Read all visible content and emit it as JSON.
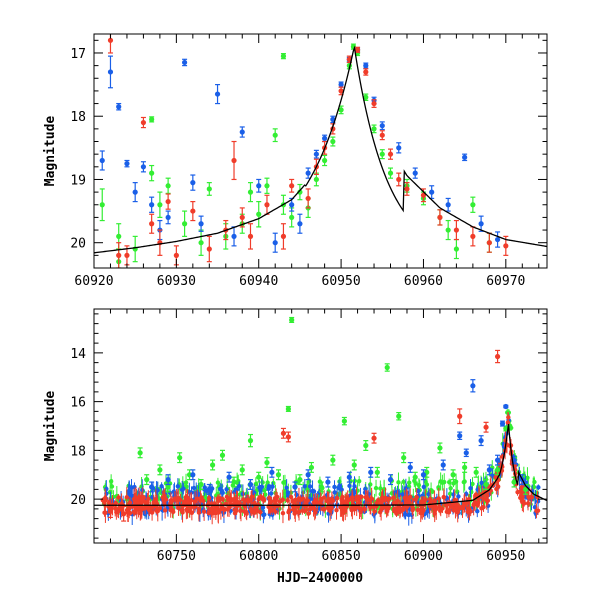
{
  "chart_data": [
    {
      "type": "scatter",
      "panel": "top",
      "ylabel": "Magnitude",
      "xlabel": "",
      "xlim": [
        60920,
        60975
      ],
      "ylim": [
        20.4,
        16.7
      ],
      "y_inverted": true,
      "x_ticks": [
        60920,
        60930,
        60940,
        60950,
        60960,
        60970
      ],
      "x_tick_labels": [
        "60920",
        "60930",
        "60940",
        "60950",
        "60960",
        "60970"
      ],
      "y_ticks": [
        17,
        18,
        19,
        20
      ],
      "y_tick_labels": [
        "17",
        "18",
        "19",
        "20"
      ],
      "model_curve": {
        "name": "model",
        "color": "#000000",
        "peak_x": 60951.6,
        "peak_mag": 16.9,
        "baseline_mag": 20.25,
        "rise_scale": 5.5,
        "fall_scale": 4.0,
        "x": [
          60920,
          60925,
          60930,
          60935,
          60940,
          60944,
          60947,
          60949,
          60950.5,
          60951.6,
          60953,
          60955,
          60958,
          60962,
          60966,
          60970,
          60975
        ],
        "y": [
          20.16,
          20.08,
          19.98,
          19.85,
          19.62,
          19.32,
          18.88,
          18.35,
          17.62,
          16.9,
          17.6,
          18.3,
          18.94,
          19.45,
          19.75,
          19.95,
          20.06
        ]
      },
      "series": [
        {
          "name": "green",
          "color": "#33ee33",
          "x": [
            60921,
            60923,
            60925,
            60927,
            60928,
            60929,
            60931,
            60933,
            60934,
            60936,
            60938,
            60940,
            60941,
            60942,
            60943,
            60944,
            60945,
            60946,
            60947,
            60948,
            60949,
            60950,
            60951,
            60951.5,
            60952,
            60953,
            60954,
            60955,
            60956,
            60958,
            60960,
            60962,
            60963,
            60964,
            60966,
            60968,
            60923,
            60927,
            60939,
            60943
          ],
          "y": [
            19.4,
            19.9,
            20.1,
            18.05,
            19.4,
            19.1,
            19.7,
            20.0,
            19.15,
            19.9,
            19.7,
            19.55,
            19.1,
            18.3,
            19.4,
            19.6,
            19.2,
            19.45,
            19.0,
            18.7,
            18.4,
            17.9,
            17.2,
            16.9,
            17.0,
            17.7,
            18.2,
            18.6,
            18.9,
            19.1,
            19.3,
            19.6,
            19.8,
            20.1,
            19.4,
            20.0,
            20.3,
            18.9,
            19.2,
            17.05
          ],
          "err": [
            0.25,
            0.2,
            0.2,
            0.04,
            0.2,
            0.12,
            0.2,
            0.2,
            0.1,
            0.2,
            0.15,
            0.2,
            0.12,
            0.1,
            0.15,
            0.15,
            0.12,
            0.15,
            0.1,
            0.08,
            0.07,
            0.06,
            0.05,
            0.04,
            0.04,
            0.05,
            0.06,
            0.07,
            0.08,
            0.1,
            0.1,
            0.12,
            0.15,
            0.15,
            0.12,
            0.15,
            0.2,
            0.12,
            0.15,
            0.04
          ]
        },
        {
          "name": "blue",
          "color": "#1a5fe8",
          "x": [
            60921,
            60922,
            60923,
            60924,
            60925,
            60926,
            60927,
            60928,
            60929,
            60931,
            60932,
            60933,
            60935,
            60937,
            60938,
            60940,
            60942,
            60944,
            60945,
            60946,
            60947,
            60948,
            60949,
            60950,
            60951,
            60952,
            60953,
            60954,
            60955,
            60957,
            60959,
            60961,
            60963,
            60965,
            60967,
            60969
          ],
          "y": [
            18.7,
            17.3,
            17.85,
            18.75,
            19.2,
            18.8,
            19.4,
            19.8,
            19.6,
            17.15,
            19.05,
            19.7,
            17.65,
            19.9,
            18.25,
            19.1,
            20.0,
            19.4,
            19.7,
            18.9,
            18.6,
            18.35,
            18.05,
            17.5,
            17.1,
            16.95,
            17.2,
            17.75,
            18.15,
            18.5,
            18.9,
            19.2,
            19.4,
            18.65,
            19.7,
            19.95
          ],
          "err": [
            0.15,
            0.25,
            0.05,
            0.05,
            0.15,
            0.08,
            0.12,
            0.15,
            0.1,
            0.05,
            0.12,
            0.12,
            0.15,
            0.15,
            0.08,
            0.1,
            0.15,
            0.1,
            0.15,
            0.08,
            0.06,
            0.05,
            0.05,
            0.04,
            0.03,
            0.03,
            0.04,
            0.05,
            0.06,
            0.08,
            0.08,
            0.1,
            0.1,
            0.05,
            0.12,
            0.12
          ]
        },
        {
          "name": "red",
          "color": "#f03c2a",
          "x": [
            60922,
            60924,
            60926,
            60927,
            60928,
            60930,
            60932,
            60934,
            60936,
            60937,
            60938,
            60939,
            60941,
            60943,
            60944,
            60946,
            60947,
            60948,
            60949,
            60950,
            60951,
            60952,
            60953,
            60954,
            60955,
            60956,
            60957,
            60958,
            60960,
            60962,
            60964,
            60966,
            60968,
            60970,
            60923,
            60929
          ],
          "y": [
            16.8,
            20.2,
            18.1,
            19.7,
            20.0,
            20.2,
            19.5,
            20.1,
            19.8,
            18.7,
            19.6,
            19.9,
            19.4,
            19.9,
            19.1,
            19.3,
            18.8,
            18.5,
            18.2,
            17.6,
            17.1,
            16.95,
            17.3,
            17.8,
            18.3,
            18.6,
            19.0,
            19.15,
            19.25,
            19.6,
            19.8,
            19.9,
            20.0,
            20.05,
            20.2,
            19.35
          ],
          "err": [
            0.2,
            0.15,
            0.08,
            0.15,
            0.2,
            0.15,
            0.15,
            0.2,
            0.15,
            0.3,
            0.15,
            0.2,
            0.15,
            0.2,
            0.1,
            0.15,
            0.12,
            0.1,
            0.08,
            0.06,
            0.05,
            0.04,
            0.05,
            0.06,
            0.07,
            0.08,
            0.1,
            0.1,
            0.1,
            0.12,
            0.15,
            0.15,
            0.15,
            0.15,
            0.2,
            0.12
          ]
        }
      ]
    },
    {
      "type": "scatter",
      "panel": "bottom",
      "ylabel": "Magnitude",
      "xlabel": "HJD−2400000",
      "xlim": [
        60700,
        60975
      ],
      "ylim": [
        21.8,
        12.2
      ],
      "y_inverted": true,
      "x_ticks": [
        60750,
        60800,
        60850,
        60900,
        60950
      ],
      "x_tick_labels": [
        "60750",
        "60800",
        "60850",
        "60900",
        "60950"
      ],
      "y_ticks": [
        14,
        16,
        18,
        20
      ],
      "y_tick_labels": [
        "14",
        "16",
        "18",
        "20"
      ],
      "baseline_mag": 20.25,
      "model_curve": {
        "name": "model",
        "color": "#000000",
        "x": [
          60700,
          60750,
          60800,
          60850,
          60900,
          60930,
          60940,
          60945,
          60948,
          60950,
          60951.6,
          60953,
          60955,
          60958,
          60962,
          60967,
          60975
        ],
        "y": [
          20.25,
          20.25,
          20.25,
          20.25,
          20.24,
          20.05,
          19.62,
          19.15,
          18.62,
          17.9,
          16.9,
          17.6,
          18.3,
          18.94,
          19.45,
          19.8,
          20.06
        ]
      },
      "series": [
        {
          "name": "green",
          "color": "#33ee33",
          "x": [
            60728,
            60732,
            60740,
            60745,
            60752,
            60758,
            60765,
            60772,
            60778,
            60785,
            60790,
            60795,
            60800,
            60805,
            60812,
            60818,
            60820,
            60825,
            60832,
            60838,
            60845,
            60852,
            60858,
            60865,
            60872,
            60878,
            60885,
            60888,
            60895,
            60902,
            60910,
            60918,
            60925,
            60932,
            60938,
            60945,
            60950,
            60955,
            60962
          ],
          "y": [
            18.1,
            19.2,
            18.8,
            19.5,
            18.3,
            19.0,
            19.4,
            18.6,
            18.2,
            19.3,
            18.8,
            17.6,
            19.1,
            18.5,
            19.0,
            16.3,
            12.65,
            19.2,
            18.7,
            19.5,
            18.4,
            16.8,
            18.6,
            17.8,
            18.9,
            14.6,
            16.6,
            18.3,
            19.1,
            18.9,
            17.9,
            19.0,
            18.7,
            18.9,
            19.4,
            18.8,
            17.1,
            19.3,
            19.6
          ],
          "err": [
            0.2,
            0.2,
            0.2,
            0.2,
            0.2,
            0.2,
            0.2,
            0.2,
            0.2,
            0.2,
            0.2,
            0.25,
            0.2,
            0.2,
            0.2,
            0.1,
            0.1,
            0.2,
            0.2,
            0.2,
            0.2,
            0.15,
            0.2,
            0.2,
            0.2,
            0.15,
            0.15,
            0.2,
            0.2,
            0.2,
            0.2,
            0.2,
            0.2,
            0.2,
            0.2,
            0.2,
            0.1,
            0.2,
            0.2
          ]
        },
        {
          "name": "blue",
          "color": "#1a5fe8",
          "x": [
            60735,
            60745,
            60760,
            60770,
            60782,
            60795,
            60808,
            60822,
            60830,
            60842,
            60855,
            60868,
            60880,
            60892,
            60900,
            60912,
            60922,
            60926,
            60930,
            60935,
            60940,
            60945,
            60948,
            60950,
            60955,
            60960
          ],
          "y": [
            19.5,
            19.2,
            19.0,
            19.6,
            19.1,
            19.4,
            18.9,
            19.5,
            19.0,
            19.3,
            19.1,
            18.9,
            19.2,
            18.7,
            19.0,
            18.6,
            17.4,
            18.1,
            15.35,
            17.6,
            18.8,
            18.4,
            16.9,
            16.2,
            18.4,
            19.2
          ],
          "err": [
            0.2,
            0.2,
            0.2,
            0.2,
            0.2,
            0.2,
            0.2,
            0.2,
            0.2,
            0.2,
            0.2,
            0.2,
            0.2,
            0.2,
            0.2,
            0.2,
            0.15,
            0.15,
            0.25,
            0.2,
            0.2,
            0.2,
            0.1,
            0.05,
            0.15,
            0.2
          ]
        },
        {
          "name": "red",
          "color": "#f03c2a",
          "x": [
            60710,
            60718,
            60815,
            60818,
            60870,
            60922,
            60938,
            60945
          ],
          "y": [
            20.5,
            20.6,
            17.3,
            17.45,
            17.5,
            16.6,
            17.05,
            14.15
          ],
          "err": [
            0.25,
            0.3,
            0.2,
            0.2,
            0.2,
            0.3,
            0.2,
            0.25
          ]
        }
      ]
    }
  ]
}
